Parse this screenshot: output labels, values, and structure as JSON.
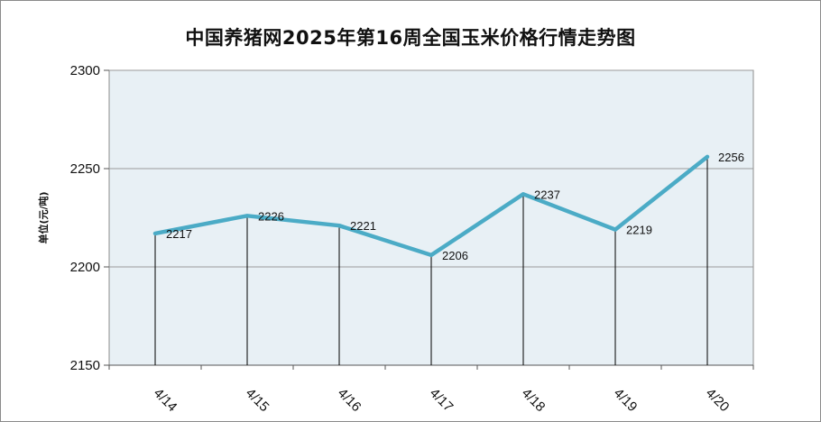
{
  "chart_data": {
    "type": "line",
    "title": "中国养猪网2025年第16周全国玉米价格行情走势图",
    "ylabel": "单位(元/吨)",
    "xlabel": "",
    "categories": [
      "4/14",
      "4/15",
      "4/16",
      "4/17",
      "4/18",
      "4/19",
      "4/20"
    ],
    "series": [
      {
        "values": [
          2217,
          2226,
          2221,
          2206,
          2237,
          2219,
          2256
        ]
      }
    ],
    "data_labels": [
      "2217",
      "2226",
      "2221",
      "2206",
      "2237",
      "2219",
      "2256"
    ],
    "ylim": [
      2150,
      2300
    ],
    "yticks": [
      "2150",
      "2200",
      "2250",
      "2300"
    ],
    "grid": true,
    "drop_lines": true,
    "colors": {
      "line": "#4babc6",
      "plot_bg": "#e8f0f5",
      "grid": "#9a9a9a"
    }
  }
}
